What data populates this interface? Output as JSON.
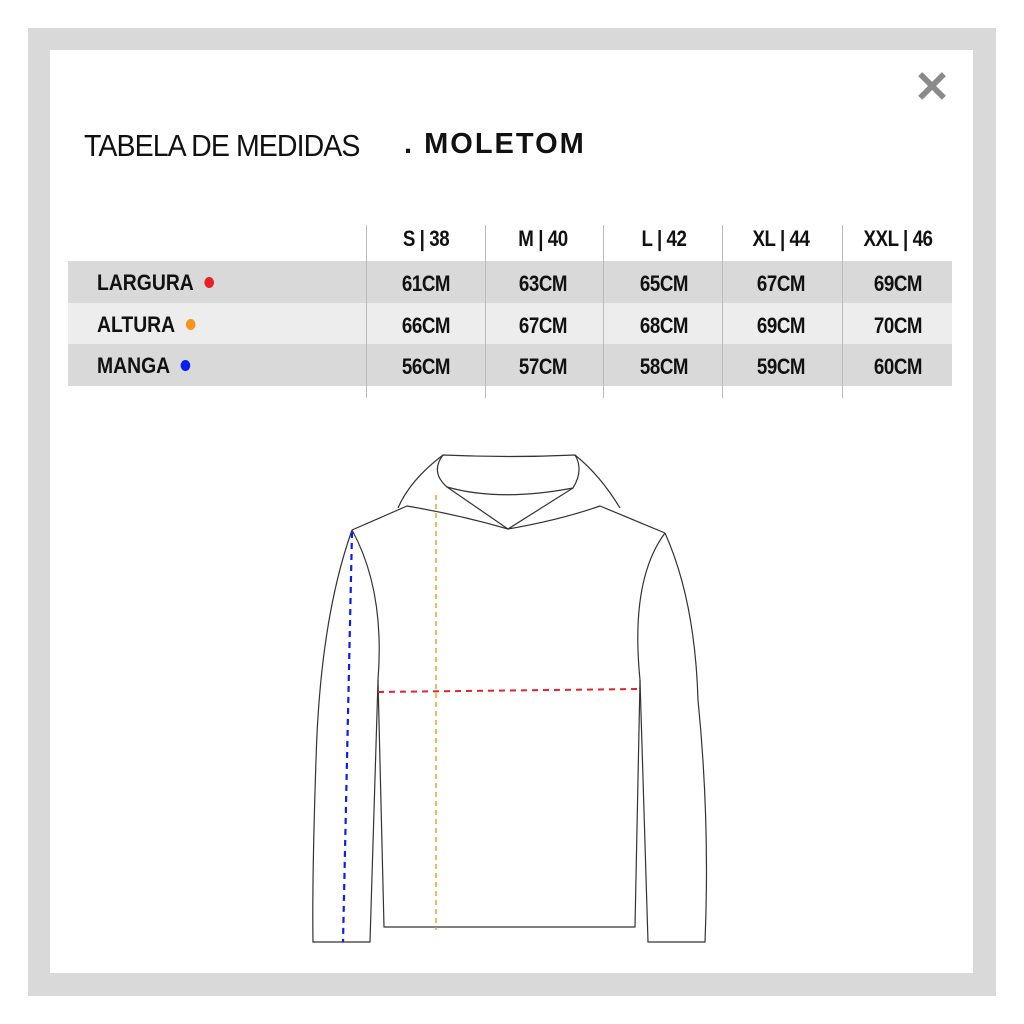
{
  "title": {
    "main": "TABELA DE MEDIDAS",
    "product": ". MOLETOM"
  },
  "close_icon": "close-icon",
  "table": {
    "headers": [
      "S | 38",
      "M | 40",
      "L | 42",
      "XL | 44",
      "XXL | 46"
    ],
    "rows": [
      {
        "label": "LARGURA",
        "color": "#e8202a",
        "values": [
          "61CM",
          "63CM",
          "65CM",
          "67CM",
          "69CM"
        ]
      },
      {
        "label": "ALTURA",
        "color": "#f7941d",
        "values": [
          "66CM",
          "67CM",
          "68CM",
          "69CM",
          "70CM"
        ]
      },
      {
        "label": "MANGA",
        "color": "#0a1ef0",
        "values": [
          "56CM",
          "57CM",
          "58CM",
          "59CM",
          "60CM"
        ]
      }
    ]
  },
  "colors": {
    "frame": "#d9d9d9",
    "row_dark": "#d9d9d9",
    "row_light": "#ededed"
  }
}
